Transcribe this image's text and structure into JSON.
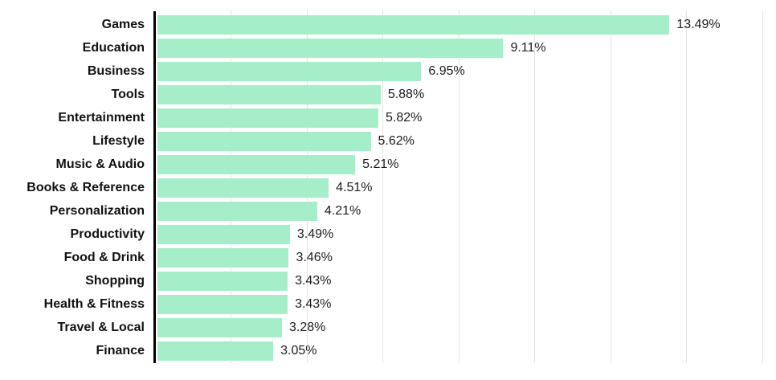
{
  "chart_data": {
    "type": "bar",
    "orientation": "horizontal",
    "title": "",
    "xlabel": "",
    "ylabel": "",
    "categories": [
      "Games",
      "Education",
      "Business",
      "Tools",
      "Entertainment",
      "Lifestyle",
      "Music & Audio",
      "Books & Reference",
      "Personalization",
      "Productivity",
      "Food & Drink",
      "Shopping",
      "Health & Fitness",
      "Travel & Local",
      "Finance"
    ],
    "values": [
      13.49,
      9.11,
      6.95,
      5.88,
      5.82,
      5.62,
      5.21,
      4.51,
      4.21,
      3.49,
      3.46,
      3.43,
      3.43,
      3.28,
      3.05
    ],
    "value_labels": [
      "13.49%",
      "9.11%",
      "6.95%",
      "5.88%",
      "5.82%",
      "5.62%",
      "5.21%",
      "4.51%",
      "4.21%",
      "3.49%",
      "3.46%",
      "3.43%",
      "3.43%",
      "3.28%",
      "3.05%"
    ],
    "xlim": [
      0,
      16.36
    ],
    "gridline_values": [
      2,
      4,
      6,
      8,
      10,
      12,
      14,
      16
    ],
    "grid": "vertical",
    "legend": "none",
    "bar_color": "#a6edc9",
    "axis_color": "#000000",
    "gridline_color": "#e3e3e3",
    "label_color": "#111111",
    "value_color": "#1c1c1c"
  }
}
